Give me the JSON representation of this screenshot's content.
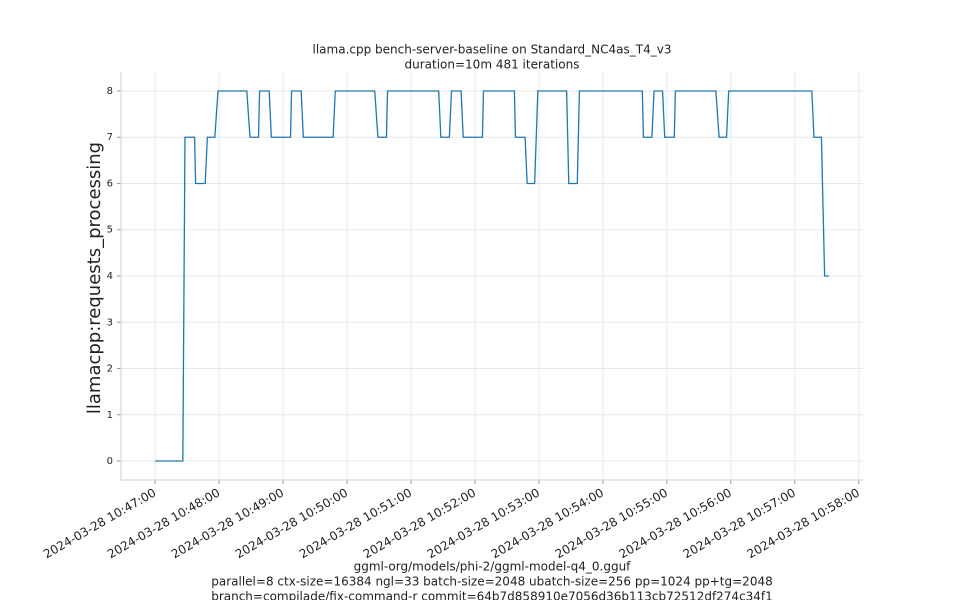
{
  "chart_data": {
    "type": "line",
    "title": "llama.cpp bench-server-baseline on Standard_NC4as_T4_v3",
    "subtitle": "duration=10m 481 iterations",
    "ylabel": "llamacpp:requests_processing",
    "xlabel": [
      "ggml-org/models/phi-2/ggml-model-q4_0.gguf",
      "parallel=8 ctx-size=16384 ngl=33 batch-size=2048 ubatch-size=256 pp=1024 pp+tg=2048",
      "branch=compilade/fix-command-r commit=64b7d858910e7056d36b113cb72512df274c34f1"
    ],
    "x": [
      "2024-03-28 10:47:00",
      "2024-03-28 10:47:26",
      "2024-03-28 10:47:28",
      "2024-03-28 10:47:37",
      "2024-03-28 10:47:38",
      "2024-03-28 10:47:47",
      "2024-03-28 10:47:49",
      "2024-03-28 10:47:56",
      "2024-03-28 10:47:59",
      "2024-03-28 10:48:26",
      "2024-03-28 10:48:29",
      "2024-03-28 10:48:37",
      "2024-03-28 10:48:38",
      "2024-03-28 10:48:47",
      "2024-03-28 10:48:49",
      "2024-03-28 10:49:07",
      "2024-03-28 10:49:08",
      "2024-03-28 10:49:17",
      "2024-03-28 10:49:19",
      "2024-03-28 10:49:47",
      "2024-03-28 10:49:49",
      "2024-03-28 10:50:26",
      "2024-03-28 10:50:29",
      "2024-03-28 10:50:37",
      "2024-03-28 10:50:38",
      "2024-03-28 10:51:26",
      "2024-03-28 10:51:28",
      "2024-03-28 10:51:36",
      "2024-03-28 10:51:38",
      "2024-03-28 10:51:47",
      "2024-03-28 10:51:49",
      "2024-03-28 10:52:07",
      "2024-03-28 10:52:08",
      "2024-03-28 10:52:37",
      "2024-03-28 10:52:38",
      "2024-03-28 10:52:47",
      "2024-03-28 10:52:49",
      "2024-03-28 10:52:56",
      "2024-03-28 10:52:59",
      "2024-03-28 10:53:26",
      "2024-03-28 10:53:28",
      "2024-03-28 10:53:36",
      "2024-03-28 10:53:38",
      "2024-03-28 10:54:37",
      "2024-03-28 10:54:38",
      "2024-03-28 10:54:46",
      "2024-03-28 10:54:48",
      "2024-03-28 10:54:56",
      "2024-03-28 10:54:58",
      "2024-03-28 10:55:07",
      "2024-03-28 10:55:08",
      "2024-03-28 10:55:46",
      "2024-03-28 10:55:49",
      "2024-03-28 10:55:56",
      "2024-03-28 10:55:58",
      "2024-03-28 10:57:16",
      "2024-03-28 10:57:18",
      "2024-03-28 10:57:25",
      "2024-03-28 10:57:28",
      "2024-03-28 10:57:32"
    ],
    "values": [
      0,
      0,
      7,
      7,
      6,
      6,
      7,
      7,
      8,
      8,
      7,
      7,
      8,
      8,
      7,
      7,
      8,
      8,
      7,
      7,
      8,
      8,
      7,
      7,
      8,
      8,
      7,
      7,
      8,
      8,
      7,
      7,
      8,
      8,
      7,
      7,
      6,
      6,
      8,
      8,
      6,
      6,
      8,
      8,
      7,
      7,
      8,
      8,
      7,
      7,
      8,
      8,
      7,
      7,
      8,
      8,
      7,
      7,
      4,
      4
    ],
    "color": "#1f77b4",
    "xlim": [
      "2024-03-28 10:46:28",
      "2024-03-28 10:58:04"
    ],
    "xticks": [
      "2024-03-28 10:47:00",
      "2024-03-28 10:48:00",
      "2024-03-28 10:49:00",
      "2024-03-28 10:50:00",
      "2024-03-28 10:51:00",
      "2024-03-28 10:52:00",
      "2024-03-28 10:53:00",
      "2024-03-28 10:54:00",
      "2024-03-28 10:55:00",
      "2024-03-28 10:56:00",
      "2024-03-28 10:57:00",
      "2024-03-28 10:58:00"
    ],
    "ylim": [
      -0.41,
      8.41
    ],
    "yticks": [
      0,
      1,
      2,
      3,
      4,
      5,
      6,
      7,
      8
    ],
    "grid": true
  }
}
